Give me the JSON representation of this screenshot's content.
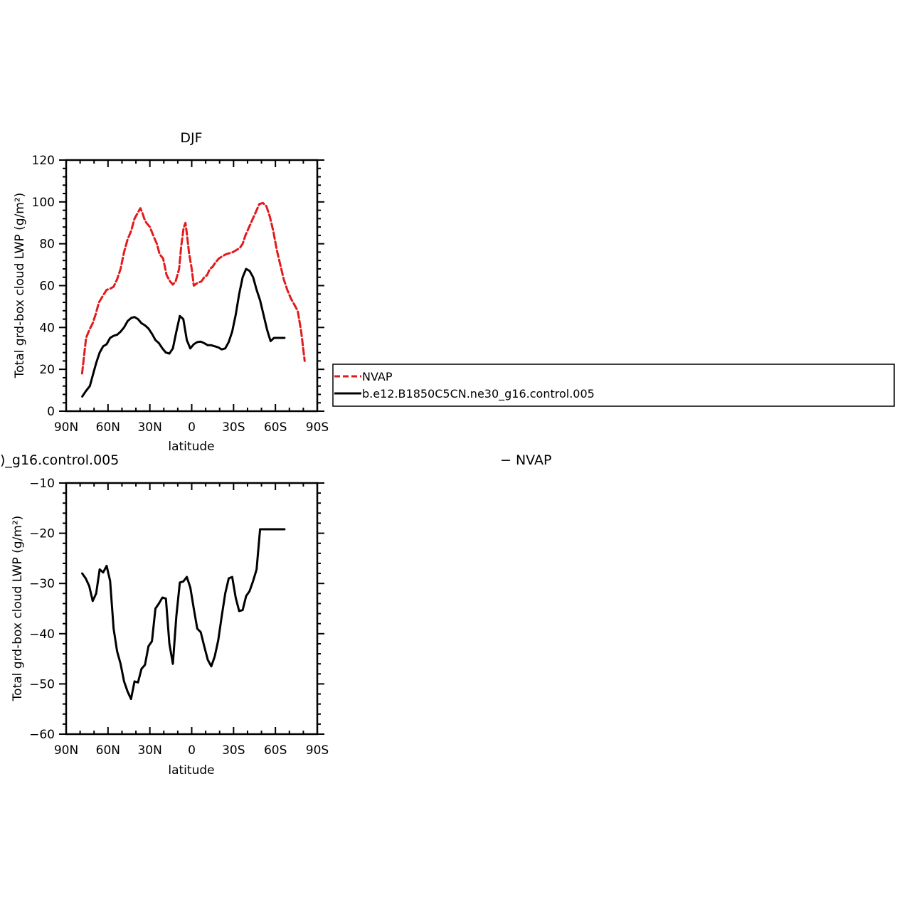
{
  "chart_data": [
    {
      "type": "line",
      "title": "DJF",
      "xlabel": "latitude",
      "ylabel": "Total grd-box cloud LWP (g/m²)",
      "xlim": [
        -90,
        90
      ],
      "ylim": [
        0,
        120
      ],
      "xticks": [
        -90,
        -60,
        -30,
        0,
        30,
        60,
        90
      ],
      "xtick_labels": [
        "90N",
        "60N",
        "30N",
        "0",
        "30S",
        "60S",
        "90S"
      ],
      "yticks": [
        0,
        20,
        40,
        60,
        80,
        100,
        120
      ],
      "ytick_labels": [
        "0",
        "20",
        "40",
        "60",
        "80",
        "100",
        "120"
      ],
      "grid": false,
      "legend_position": "right",
      "series": [
        {
          "name": "NVAP",
          "color": "#e31a1c",
          "dash": "dashed",
          "x": [
            -78.6,
            -75.7,
            -73.3,
            -71,
            -69,
            -66.5,
            -63.8,
            -61,
            -58.5,
            -56,
            -53.5,
            -51,
            -48.5,
            -46,
            -43.5,
            -41,
            -38.5,
            -36.8,
            -35.5,
            -34,
            -32.5,
            -30,
            -27,
            -25,
            -23,
            -20.5,
            -18,
            -15.5,
            -13.5,
            -11.5,
            -9,
            -7.5,
            -5.8,
            -4.5,
            -3.5,
            -2,
            0,
            1.5,
            3.5,
            5,
            7,
            9,
            11,
            13,
            15,
            17,
            19.5,
            22,
            24.5,
            27,
            29.5,
            32,
            34.5,
            36.5,
            38.5,
            40.5,
            42.5,
            44.5,
            46.5,
            48.5,
            51,
            53.5,
            56,
            58.5,
            61,
            63.5,
            66,
            68.5,
            71,
            73.5,
            76,
            78.5,
            81
          ],
          "y": [
            18,
            35,
            39,
            42,
            46,
            52,
            55,
            58,
            58.5,
            59.5,
            63,
            68,
            76,
            82,
            86,
            92,
            95,
            97,
            95,
            92,
            90,
            88,
            83,
            80,
            75,
            73,
            65,
            62,
            60.5,
            62,
            68,
            79,
            87.5,
            90,
            85,
            76,
            68,
            60,
            61,
            61.5,
            62,
            64,
            65,
            68,
            69,
            71,
            73,
            74,
            75,
            75.5,
            76,
            77,
            78,
            80,
            84,
            87,
            90,
            93,
            96,
            99,
            99.5,
            98,
            93,
            86,
            77,
            70,
            63,
            58,
            54,
            51,
            48,
            38,
            24
          ]
        },
        {
          "name": "b.e12.B1850C5CN.ne30_g16.control.005",
          "color": "#000000",
          "dash": "solid",
          "x": [
            -78.5,
            -76,
            -73,
            -71,
            -68.5,
            -66,
            -63.5,
            -61,
            -58.5,
            -56,
            -53.5,
            -51,
            -48.5,
            -46,
            -43.5,
            -41,
            -38.5,
            -36,
            -33.5,
            -31,
            -28.5,
            -26,
            -23.5,
            -21,
            -18.5,
            -16,
            -13.5,
            -11,
            -8.5,
            -6,
            -3.5,
            -1,
            1.5,
            4,
            6.5,
            9,
            11.5,
            14,
            16.5,
            19,
            21.5,
            24,
            26.5,
            29,
            31.5,
            34,
            36.5,
            39,
            41.5,
            44,
            46.5,
            49,
            51.5,
            54,
            56.5,
            59,
            61.5,
            64,
            66.5
          ],
          "y": [
            7,
            9.5,
            12,
            17,
            23,
            28,
            31,
            32,
            35,
            36,
            36.5,
            38,
            40,
            43,
            44.5,
            45,
            44,
            42,
            41,
            39.5,
            37,
            34,
            32.5,
            30,
            28,
            27.5,
            30,
            38,
            45.5,
            44,
            34,
            30,
            32,
            33,
            33.2,
            32.5,
            31.5,
            31.5,
            31,
            30.5,
            29.5,
            30,
            33,
            38,
            46,
            56,
            64,
            68,
            67,
            64,
            58,
            53,
            46,
            39,
            33.5,
            35,
            35,
            35,
            35
          ]
        }
      ]
    },
    {
      "type": "line",
      "title": "",
      "title_left": ")_g16.control.005",
      "title_right": "− NVAP",
      "xlabel": "latitude",
      "ylabel": "Total grd-box cloud LWP (g/m²)",
      "xlim": [
        -90,
        90
      ],
      "ylim": [
        -60,
        -10
      ],
      "xticks": [
        -90,
        -60,
        -30,
        0,
        30,
        60,
        90
      ],
      "xtick_labels": [
        "90N",
        "60N",
        "30N",
        "0",
        "30S",
        "60S",
        "90S"
      ],
      "yticks": [
        -60,
        -50,
        -40,
        -30,
        -20,
        -10
      ],
      "ytick_labels": [
        "−60",
        "−50",
        "−40",
        "−30",
        "−20",
        "−10"
      ],
      "grid": false,
      "series": [
        {
          "color": "#000000",
          "dash": "solid",
          "x": [
            -78.5,
            -76,
            -73.5,
            -71,
            -68.5,
            -66,
            -63.5,
            -61,
            -58.5,
            -56,
            -53.5,
            -51,
            -48.5,
            -46,
            -43.5,
            -41,
            -38.5,
            -36,
            -33.5,
            -31,
            -28.5,
            -26,
            -23.5,
            -21,
            -18.5,
            -16,
            -13.5,
            -11,
            -8.5,
            -6,
            -3.5,
            -1,
            1.5,
            4,
            6.5,
            9,
            11.5,
            14,
            16.5,
            19,
            21.5,
            24,
            26.5,
            29,
            31.5,
            34,
            36.5,
            39,
            41.5,
            44,
            46.5,
            49,
            51.5,
            54,
            56.5,
            59,
            61.5,
            64,
            66.5
          ],
          "y": [
            -28,
            -29,
            -30.5,
            -33.5,
            -32,
            -27.2,
            -27.8,
            -26.5,
            -29.5,
            -39,
            -43.5,
            -46,
            -49.5,
            -51.5,
            -53,
            -49.5,
            -49.7,
            -47,
            -46.2,
            -42.5,
            -41.5,
            -35,
            -34,
            -32.8,
            -33,
            -42,
            -46,
            -36.5,
            -29.8,
            -29.6,
            -28.7,
            -30.8,
            -35,
            -39,
            -39.7,
            -42.5,
            -45.2,
            -46.5,
            -44.5,
            -41.3,
            -36.5,
            -32,
            -29,
            -28.7,
            -32.8,
            -35.5,
            -35.3,
            -32.5,
            -31.5,
            -29.5,
            -27.2,
            -19.2,
            -19.2,
            -19.2,
            -19.2,
            -19.2,
            -19.2,
            -19.2,
            -19.2
          ]
        }
      ]
    }
  ]
}
